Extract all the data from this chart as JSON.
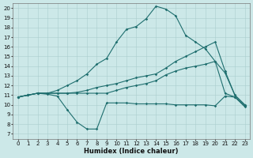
{
  "xlabel": "Humidex (Indice chaleur)",
  "xlim_min": -0.5,
  "xlim_max": 23.5,
  "ylim_min": 6.5,
  "ylim_max": 20.5,
  "yticks": [
    7,
    8,
    9,
    10,
    11,
    12,
    13,
    14,
    15,
    16,
    17,
    18,
    19,
    20
  ],
  "xticks": [
    0,
    1,
    2,
    3,
    4,
    5,
    6,
    7,
    8,
    9,
    10,
    11,
    12,
    13,
    14,
    15,
    16,
    17,
    18,
    19,
    20,
    21,
    22,
    23
  ],
  "bg_color": "#cce8e8",
  "line_color": "#1e6e6e",
  "grid_color": "#aacece",
  "line1_x": [
    0,
    1,
    2,
    3,
    4,
    5,
    6,
    7,
    8,
    9,
    10,
    11,
    12,
    13,
    14,
    15,
    16,
    17,
    18,
    19,
    20,
    21,
    22,
    23
  ],
  "line1_y": [
    10.8,
    11.0,
    11.2,
    11.1,
    10.9,
    9.5,
    8.2,
    7.5,
    7.5,
    10.2,
    10.2,
    10.2,
    10.1,
    10.1,
    10.1,
    10.1,
    10.0,
    10.0,
    10.0,
    10.0,
    9.9,
    10.9,
    10.8,
    9.9
  ],
  "line2_x": [
    0,
    1,
    2,
    3,
    4,
    5,
    6,
    7,
    8,
    9,
    10,
    11,
    12,
    13,
    14,
    15,
    16,
    17,
    18,
    19,
    20,
    21,
    22,
    23
  ],
  "line2_y": [
    10.8,
    11.0,
    11.2,
    11.2,
    11.2,
    11.2,
    11.2,
    11.2,
    11.2,
    11.2,
    11.5,
    11.8,
    12.0,
    12.2,
    12.5,
    13.1,
    13.5,
    13.8,
    14.0,
    14.2,
    14.5,
    13.3,
    11.0,
    10.0
  ],
  "line3_x": [
    0,
    1,
    2,
    3,
    4,
    5,
    6,
    7,
    8,
    9,
    10,
    11,
    12,
    13,
    14,
    15,
    16,
    17,
    18,
    19,
    20,
    21,
    22,
    23
  ],
  "line3_y": [
    10.8,
    11.0,
    11.2,
    11.2,
    11.2,
    11.2,
    11.3,
    11.5,
    11.8,
    12.0,
    12.2,
    12.5,
    12.8,
    13.0,
    13.2,
    13.8,
    14.5,
    15.0,
    15.5,
    16.0,
    16.5,
    13.5,
    11.0,
    10.0
  ],
  "line4_x": [
    0,
    1,
    2,
    3,
    4,
    5,
    6,
    7,
    8,
    9,
    10,
    11,
    12,
    13,
    14,
    15,
    16,
    17,
    18,
    19,
    20,
    21,
    22,
    23
  ],
  "line4_y": [
    10.8,
    11.0,
    11.2,
    11.2,
    11.5,
    12.0,
    12.5,
    13.2,
    14.2,
    14.8,
    16.5,
    17.8,
    18.1,
    18.9,
    20.2,
    19.9,
    19.2,
    17.2,
    16.5,
    15.8,
    14.5,
    11.2,
    10.8,
    9.8
  ],
  "tick_fontsize": 5.0,
  "xlabel_fontsize": 6.0
}
